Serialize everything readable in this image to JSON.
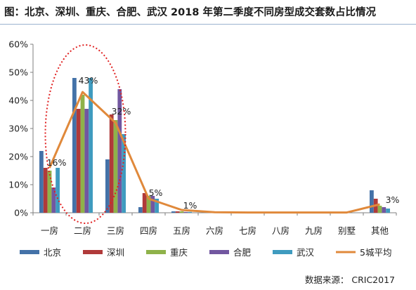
{
  "title": "图：北京、深圳、重庆、合肥、武汉 2018 年第二季度不同房型成交套数占比情况",
  "source": "数据来源： CRIC2017",
  "chart_data": {
    "type": "bar+line",
    "title": "图：北京、深圳、重庆、合肥、武汉 2018 年第二季度不同房型成交套数占比情况",
    "categories": [
      "一房",
      "二房",
      "三房",
      "四房",
      "五房",
      "六房",
      "七房",
      "八房",
      "九房",
      "别墅",
      "其他"
    ],
    "ylim": [
      0,
      60
    ],
    "yticks": [
      0,
      10,
      20,
      30,
      40,
      50,
      60
    ],
    "ytick_labels": [
      "0%",
      "10%",
      "20%",
      "30%",
      "40%",
      "50%",
      "60%"
    ],
    "legend_position": "bottom",
    "grid": false,
    "series": [
      {
        "name": "北京",
        "kind": "bar",
        "color": "#4472a8",
        "values": [
          22,
          48,
          19,
          2,
          0.5,
          0,
          0,
          0,
          0,
          0,
          8
        ]
      },
      {
        "name": "深圳",
        "kind": "bar",
        "color": "#b03a3a",
        "values": [
          16,
          37,
          35,
          7,
          0.5,
          0,
          0,
          0,
          0,
          0,
          5
        ]
      },
      {
        "name": "重庆",
        "kind": "bar",
        "color": "#8fb24a",
        "values": [
          15,
          42,
          33,
          6,
          0.5,
          0,
          0,
          0,
          0,
          0,
          2.5
        ]
      },
      {
        "name": "合肥",
        "kind": "bar",
        "color": "#7257a0",
        "values": [
          9,
          37,
          44,
          6,
          0.3,
          0,
          0,
          0,
          0,
          0,
          2
        ]
      },
      {
        "name": "武汉",
        "kind": "bar",
        "color": "#3f9bbf",
        "values": [
          16,
          48,
          28,
          5,
          0.3,
          0,
          0,
          0,
          0,
          0,
          1.5
        ]
      },
      {
        "name": "5城平均",
        "kind": "line",
        "color": "#e0893b",
        "values": [
          16,
          43,
          32,
          5,
          1,
          0.2,
          0.1,
          0.1,
          0.1,
          0.1,
          3
        ]
      }
    ],
    "data_labels": [
      {
        "category": "一房",
        "text": "16%"
      },
      {
        "category": "二房",
        "text": "43%"
      },
      {
        "category": "三房",
        "text": "32%"
      },
      {
        "category": "四房",
        "text": "5%"
      },
      {
        "category": "五房",
        "text": "1%"
      },
      {
        "category": "其他",
        "text": "3%"
      }
    ],
    "annotation": {
      "type": "dotted-ellipse",
      "color": "#e02020",
      "around": [
        "一房",
        "二房",
        "三房"
      ]
    }
  }
}
